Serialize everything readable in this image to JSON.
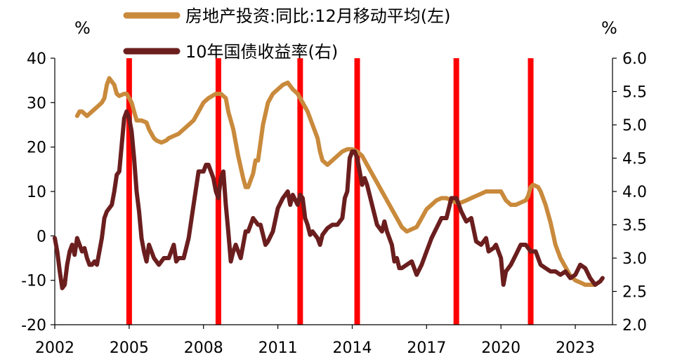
{
  "chart_data": {
    "type": "line",
    "left_unit": "%",
    "right_unit": "%",
    "y_left_ticks": [
      "40",
      "30",
      "20",
      "10",
      "0",
      "-10",
      "-20"
    ],
    "y_left_range": [
      -20,
      40
    ],
    "y_right_ticks": [
      "6.0",
      "5.5",
      "5.0",
      "4.5",
      "4.0",
      "3.5",
      "3.0",
      "2.5",
      "2.0"
    ],
    "y_right_range": [
      2.0,
      6.0
    ],
    "x_ticks": [
      "2002",
      "2005",
      "2008",
      "2011",
      "2014",
      "2017",
      "2020",
      "2023"
    ],
    "x_range": [
      2002.0,
      2024.5
    ],
    "colors": {
      "real_estate": "#C98A3C",
      "bond": "#6B1E1E",
      "marker": "#FF0000"
    },
    "markers_x": [
      2005.0,
      2008.6,
      2011.9,
      2014.2,
      2018.2,
      2021.2
    ],
    "series": [
      {
        "name": "房地产投资:同比:12月移动平均(左)",
        "axis": "left",
        "points": [
          [
            2002.9,
            27
          ],
          [
            2003.0,
            28
          ],
          [
            2003.1,
            28
          ],
          [
            2003.2,
            27.5
          ],
          [
            2003.3,
            27
          ],
          [
            2003.5,
            28
          ],
          [
            2003.7,
            29
          ],
          [
            2003.9,
            30
          ],
          [
            2004.0,
            31
          ],
          [
            2004.1,
            34
          ],
          [
            2004.2,
            35.5
          ],
          [
            2004.4,
            34
          ],
          [
            2004.5,
            32
          ],
          [
            2004.6,
            31.5
          ],
          [
            2004.8,
            32
          ],
          [
            2004.9,
            32
          ],
          [
            2005.0,
            31
          ],
          [
            2005.1,
            30
          ],
          [
            2005.2,
            28
          ],
          [
            2005.3,
            26
          ],
          [
            2005.5,
            26
          ],
          [
            2005.7,
            25.5
          ],
          [
            2005.8,
            24
          ],
          [
            2005.9,
            23
          ],
          [
            2006.0,
            22
          ],
          [
            2006.1,
            21.5
          ],
          [
            2006.3,
            21
          ],
          [
            2006.5,
            21.5
          ],
          [
            2006.6,
            22
          ],
          [
            2006.8,
            22.5
          ],
          [
            2007.0,
            23
          ],
          [
            2007.2,
            24
          ],
          [
            2007.4,
            25
          ],
          [
            2007.6,
            26
          ],
          [
            2007.8,
            28
          ],
          [
            2008.0,
            30
          ],
          [
            2008.2,
            31
          ],
          [
            2008.5,
            32
          ],
          [
            2008.7,
            32
          ],
          [
            2008.9,
            31
          ],
          [
            2009.0,
            28
          ],
          [
            2009.2,
            24
          ],
          [
            2009.4,
            18
          ],
          [
            2009.6,
            13
          ],
          [
            2009.7,
            11
          ],
          [
            2009.8,
            11
          ],
          [
            2010.0,
            14
          ],
          [
            2010.1,
            17
          ],
          [
            2010.2,
            17
          ],
          [
            2010.4,
            25
          ],
          [
            2010.6,
            30
          ],
          [
            2010.8,
            32
          ],
          [
            2011.0,
            33
          ],
          [
            2011.2,
            34
          ],
          [
            2011.4,
            34.5
          ],
          [
            2011.6,
            33
          ],
          [
            2011.8,
            32
          ],
          [
            2011.9,
            31
          ],
          [
            2012.0,
            30
          ],
          [
            2012.2,
            28
          ],
          [
            2012.4,
            25
          ],
          [
            2012.6,
            22
          ],
          [
            2012.7,
            19
          ],
          [
            2012.8,
            17
          ],
          [
            2013.0,
            16
          ],
          [
            2013.2,
            17
          ],
          [
            2013.4,
            18
          ],
          [
            2013.6,
            19
          ],
          [
            2013.8,
            19.5
          ],
          [
            2014.0,
            19.5
          ],
          [
            2014.2,
            19
          ],
          [
            2014.4,
            18
          ],
          [
            2014.6,
            16
          ],
          [
            2014.8,
            14
          ],
          [
            2015.0,
            12
          ],
          [
            2015.2,
            10
          ],
          [
            2015.4,
            8
          ],
          [
            2015.6,
            6
          ],
          [
            2015.8,
            4
          ],
          [
            2016.0,
            2
          ],
          [
            2016.2,
            1
          ],
          [
            2016.4,
            1.5
          ],
          [
            2016.6,
            2
          ],
          [
            2016.8,
            4
          ],
          [
            2017.0,
            6
          ],
          [
            2017.2,
            7
          ],
          [
            2017.4,
            8
          ],
          [
            2017.6,
            8.5
          ],
          [
            2017.8,
            8.5
          ],
          [
            2018.0,
            8
          ],
          [
            2018.2,
            7.5
          ],
          [
            2018.4,
            7.5
          ],
          [
            2018.6,
            8
          ],
          [
            2018.8,
            8.5
          ],
          [
            2019.0,
            9
          ],
          [
            2019.2,
            9.5
          ],
          [
            2019.4,
            10
          ],
          [
            2019.6,
            10
          ],
          [
            2019.8,
            10
          ],
          [
            2020.0,
            10
          ],
          [
            2020.2,
            8
          ],
          [
            2020.4,
            7
          ],
          [
            2020.6,
            7
          ],
          [
            2020.8,
            7.5
          ],
          [
            2021.0,
            8
          ],
          [
            2021.1,
            9
          ],
          [
            2021.2,
            11
          ],
          [
            2021.3,
            11.5
          ],
          [
            2021.5,
            11
          ],
          [
            2021.6,
            10
          ],
          [
            2021.8,
            7
          ],
          [
            2022.0,
            3
          ],
          [
            2022.2,
            -2
          ],
          [
            2022.4,
            -5
          ],
          [
            2022.6,
            -7
          ],
          [
            2022.8,
            -9
          ],
          [
            2023.0,
            -10
          ],
          [
            2023.2,
            -10.5
          ],
          [
            2023.4,
            -11
          ],
          [
            2023.6,
            -11
          ],
          [
            2023.8,
            -11
          ]
        ]
      },
      {
        "name": "10年国债收益率(右)",
        "axis": "right",
        "points": [
          [
            2002.0,
            3.3
          ],
          [
            2002.1,
            3.1
          ],
          [
            2002.2,
            2.8
          ],
          [
            2002.3,
            2.55
          ],
          [
            2002.4,
            2.6
          ],
          [
            2002.5,
            2.9
          ],
          [
            2002.6,
            3.1
          ],
          [
            2002.7,
            3.2
          ],
          [
            2002.8,
            3.05
          ],
          [
            2002.9,
            3.3
          ],
          [
            2003.0,
            3.2
          ],
          [
            2003.1,
            3.1
          ],
          [
            2003.2,
            3.15
          ],
          [
            2003.3,
            3.0
          ],
          [
            2003.4,
            2.9
          ],
          [
            2003.5,
            2.9
          ],
          [
            2003.6,
            2.95
          ],
          [
            2003.7,
            2.9
          ],
          [
            2003.8,
            3.1
          ],
          [
            2003.9,
            3.3
          ],
          [
            2004.0,
            3.6
          ],
          [
            2004.1,
            3.7
          ],
          [
            2004.3,
            3.8
          ],
          [
            2004.4,
            4.0
          ],
          [
            2004.5,
            4.25
          ],
          [
            2004.6,
            4.3
          ],
          [
            2004.7,
            4.7
          ],
          [
            2004.8,
            5.1
          ],
          [
            2004.9,
            5.2
          ],
          [
            2005.0,
            5.1
          ],
          [
            2005.1,
            4.9
          ],
          [
            2005.2,
            4.5
          ],
          [
            2005.3,
            4.0
          ],
          [
            2005.4,
            3.7
          ],
          [
            2005.5,
            3.3
          ],
          [
            2005.6,
            3.1
          ],
          [
            2005.7,
            2.95
          ],
          [
            2005.8,
            3.2
          ],
          [
            2006.0,
            3.0
          ],
          [
            2006.2,
            2.9
          ],
          [
            2006.4,
            3.0
          ],
          [
            2006.6,
            3.0
          ],
          [
            2006.8,
            3.2
          ],
          [
            2006.9,
            2.95
          ],
          [
            2007.0,
            3.0
          ],
          [
            2007.2,
            3.0
          ],
          [
            2007.4,
            3.3
          ],
          [
            2007.6,
            3.8
          ],
          [
            2007.8,
            4.3
          ],
          [
            2008.0,
            4.3
          ],
          [
            2008.1,
            4.4
          ],
          [
            2008.2,
            4.4
          ],
          [
            2008.4,
            4.2
          ],
          [
            2008.5,
            4.0
          ],
          [
            2008.6,
            3.9
          ],
          [
            2008.7,
            4.2
          ],
          [
            2008.8,
            4.3
          ],
          [
            2008.9,
            3.8
          ],
          [
            2009.0,
            3.4
          ],
          [
            2009.1,
            2.95
          ],
          [
            2009.2,
            3.1
          ],
          [
            2009.3,
            3.2
          ],
          [
            2009.5,
            3.0
          ],
          [
            2009.6,
            3.2
          ],
          [
            2009.7,
            3.4
          ],
          [
            2009.8,
            3.4
          ],
          [
            2009.9,
            3.5
          ],
          [
            2010.0,
            3.6
          ],
          [
            2010.2,
            3.5
          ],
          [
            2010.3,
            3.5
          ],
          [
            2010.5,
            3.2
          ],
          [
            2010.6,
            3.25
          ],
          [
            2010.8,
            3.4
          ],
          [
            2011.0,
            3.75
          ],
          [
            2011.2,
            3.9
          ],
          [
            2011.3,
            3.95
          ],
          [
            2011.4,
            4.0
          ],
          [
            2011.5,
            3.8
          ],
          [
            2011.6,
            3.95
          ],
          [
            2011.8,
            3.8
          ],
          [
            2011.9,
            3.95
          ],
          [
            2012.0,
            3.9
          ],
          [
            2012.1,
            3.6
          ],
          [
            2012.2,
            3.5
          ],
          [
            2012.3,
            3.35
          ],
          [
            2012.4,
            3.4
          ],
          [
            2012.5,
            3.35
          ],
          [
            2012.6,
            3.3
          ],
          [
            2012.7,
            3.2
          ],
          [
            2012.8,
            3.35
          ],
          [
            2013.0,
            3.45
          ],
          [
            2013.2,
            3.5
          ],
          [
            2013.4,
            3.5
          ],
          [
            2013.6,
            3.6
          ],
          [
            2013.7,
            3.9
          ],
          [
            2013.8,
            4.0
          ],
          [
            2013.9,
            4.5
          ],
          [
            2014.0,
            4.6
          ],
          [
            2014.1,
            4.6
          ],
          [
            2014.2,
            4.5
          ],
          [
            2014.3,
            4.3
          ],
          [
            2014.4,
            4.1
          ],
          [
            2014.5,
            4.2
          ],
          [
            2014.6,
            4.1
          ],
          [
            2014.8,
            3.8
          ],
          [
            2015.0,
            3.5
          ],
          [
            2015.2,
            3.4
          ],
          [
            2015.3,
            3.55
          ],
          [
            2015.4,
            3.4
          ],
          [
            2015.6,
            3.2
          ],
          [
            2015.7,
            2.95
          ],
          [
            2015.8,
            3.0
          ],
          [
            2015.9,
            2.85
          ],
          [
            2016.0,
            2.85
          ],
          [
            2016.2,
            2.9
          ],
          [
            2016.4,
            2.95
          ],
          [
            2016.6,
            2.75
          ],
          [
            2016.8,
            2.9
          ],
          [
            2017.0,
            3.1
          ],
          [
            2017.2,
            3.3
          ],
          [
            2017.4,
            3.45
          ],
          [
            2017.6,
            3.6
          ],
          [
            2017.8,
            3.6
          ],
          [
            2018.0,
            3.9
          ],
          [
            2018.2,
            3.9
          ],
          [
            2018.4,
            3.7
          ],
          [
            2018.6,
            3.55
          ],
          [
            2018.8,
            3.6
          ],
          [
            2019.0,
            3.25
          ],
          [
            2019.2,
            3.2
          ],
          [
            2019.4,
            3.3
          ],
          [
            2019.5,
            3.1
          ],
          [
            2019.7,
            3.15
          ],
          [
            2019.8,
            3.2
          ],
          [
            2020.0,
            3.0
          ],
          [
            2020.1,
            2.6
          ],
          [
            2020.2,
            2.8
          ],
          [
            2020.4,
            2.9
          ],
          [
            2020.6,
            3.05
          ],
          [
            2020.8,
            3.2
          ],
          [
            2021.0,
            3.2
          ],
          [
            2021.2,
            3.1
          ],
          [
            2021.4,
            3.1
          ],
          [
            2021.6,
            2.9
          ],
          [
            2021.8,
            2.85
          ],
          [
            2022.0,
            2.8
          ],
          [
            2022.2,
            2.8
          ],
          [
            2022.4,
            2.75
          ],
          [
            2022.6,
            2.8
          ],
          [
            2022.8,
            2.7
          ],
          [
            2023.0,
            2.75
          ],
          [
            2023.2,
            2.9
          ],
          [
            2023.4,
            2.85
          ],
          [
            2023.6,
            2.7
          ],
          [
            2023.8,
            2.6
          ],
          [
            2024.0,
            2.65
          ],
          [
            2024.1,
            2.7
          ]
        ]
      }
    ]
  }
}
